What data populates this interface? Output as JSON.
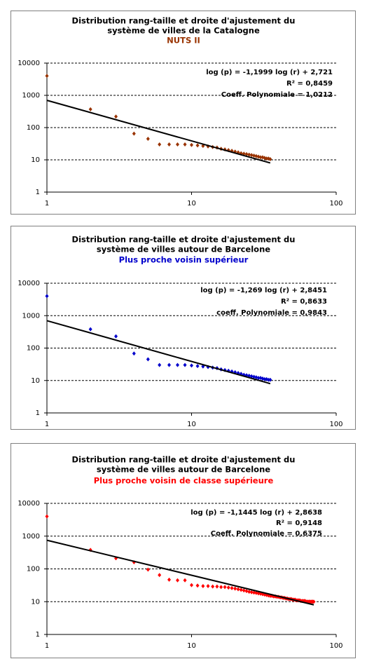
{
  "chart_data": [
    {
      "type": "scatter",
      "title": [
        "Distribution rang-taille et droite d'ajustement du",
        "système de villes de la Catalogne"
      ],
      "subtitle": "NUTS II",
      "subtitle_color": "#993300",
      "annotations": [
        "log (p) = -1,1999 log (r) + 2,721",
        "R² = 0,8459",
        "Coeff. Polynomiale = 1,0212"
      ],
      "log_x": true,
      "log_y": true,
      "grid": true,
      "xlim": [
        1,
        100
      ],
      "ylim": [
        1,
        10000
      ],
      "xticks": [
        1,
        10,
        100
      ],
      "yticks": [
        1,
        10,
        100,
        1000,
        10000
      ],
      "series": [
        {
          "kind": "points",
          "color": "#993300",
          "x": [
            1,
            2,
            3,
            4,
            5,
            6,
            7,
            8,
            9,
            10,
            11,
            12,
            13,
            14,
            15,
            16,
            17,
            18,
            19,
            20,
            21,
            22,
            23,
            24,
            25,
            26,
            27,
            28,
            29,
            30,
            31,
            32,
            33,
            34,
            35
          ],
          "values": [
            4000,
            370,
            220,
            65,
            45,
            30,
            30,
            30,
            30,
            29,
            28,
            27,
            26,
            25,
            24,
            22,
            21,
            20,
            19,
            18,
            17,
            16,
            15.5,
            15,
            14.5,
            14,
            13.5,
            13,
            12.5,
            12,
            12,
            11.5,
            11,
            11,
            10.5
          ]
        },
        {
          "kind": "line",
          "color": "#000000",
          "x": [
            1,
            35
          ],
          "values": [
            700,
            8
          ]
        }
      ]
    },
    {
      "type": "scatter",
      "title": [
        "Distribution rang-taille et droite d'ajustement du",
        "système de villes autour de Barcelone"
      ],
      "subtitle": "Plus proche voisin supérieur",
      "subtitle_color": "#0000cc",
      "annotations": [
        "log (p) = -1,269 log (r) + 2,8451",
        "R² = 0,8633",
        "coeff. Polynomiale = 0,9843"
      ],
      "log_x": true,
      "log_y": true,
      "grid": true,
      "xlim": [
        1,
        100
      ],
      "ylim": [
        1,
        10000
      ],
      "xticks": [
        1,
        10,
        100
      ],
      "yticks": [
        1,
        10,
        100,
        1000,
        10000
      ],
      "series": [
        {
          "kind": "points",
          "color": "#0000cc",
          "x": [
            1,
            2,
            3,
            4,
            5,
            6,
            7,
            8,
            9,
            10,
            11,
            12,
            13,
            14,
            15,
            16,
            17,
            18,
            19,
            20,
            21,
            22,
            23,
            24,
            25,
            26,
            27,
            28,
            29,
            30,
            31,
            32,
            33,
            34,
            35
          ],
          "values": [
            4000,
            380,
            230,
            68,
            45,
            30,
            30,
            30,
            30,
            29,
            28,
            27,
            26,
            25,
            24,
            22,
            21,
            20,
            19,
            18,
            17,
            16,
            15,
            14.5,
            14,
            13.5,
            13,
            12.5,
            12,
            12,
            11.5,
            11,
            11,
            10.5,
            10.5
          ]
        },
        {
          "kind": "line",
          "color": "#000000",
          "x": [
            1,
            35
          ],
          "values": [
            700,
            8
          ]
        }
      ]
    },
    {
      "type": "scatter",
      "title": [
        "Distribution rang-taille et droite d'ajustement du",
        "système de villes autour de Barcelone"
      ],
      "subtitle": "Plus proche voisin de classe supérieure",
      "subtitle_color": "#ff0000",
      "annotations": [
        "log (p) = -1,1445 log (r) + 2,8638",
        "R² = 0,9148",
        "Coeff. Polynomiale = 0,6375"
      ],
      "log_x": true,
      "log_y": true,
      "grid": true,
      "xlim": [
        1,
        100
      ],
      "ylim": [
        1,
        10000
      ],
      "xticks": [
        1,
        10,
        100
      ],
      "yticks": [
        1,
        10,
        100,
        1000,
        10000
      ],
      "series": [
        {
          "kind": "points",
          "color": "#ff0000",
          "x": [
            1,
            2,
            3,
            4,
            5,
            6,
            7,
            8,
            9,
            10,
            11,
            12,
            13,
            14,
            15,
            16,
            17,
            18,
            19,
            20,
            21,
            22,
            23,
            24,
            25,
            26,
            27,
            28,
            29,
            30,
            31,
            32,
            33,
            34,
            35,
            36,
            37,
            38,
            39,
            40,
            41,
            42,
            43,
            44,
            45,
            46,
            47,
            48,
            49,
            50,
            51,
            52,
            53,
            54,
            55,
            56,
            57,
            58,
            59,
            60,
            61,
            62,
            63,
            64,
            65,
            66,
            67,
            68,
            69,
            70
          ],
          "values": [
            4000,
            380,
            210,
            160,
            95,
            65,
            47,
            45,
            45,
            32,
            31,
            30,
            30,
            29,
            29,
            28,
            28,
            27,
            26,
            25,
            24,
            23,
            22,
            21,
            20,
            19.5,
            19,
            18.5,
            18,
            17.5,
            17,
            16.5,
            16,
            15.5,
            15,
            15,
            14.5,
            14.5,
            14,
            14,
            13.5,
            13.5,
            13,
            13,
            12.5,
            12.5,
            12,
            12,
            12,
            11.5,
            11.5,
            11.5,
            11,
            11,
            11,
            11,
            10.5,
            10.5,
            10.5,
            10.5,
            10.5,
            10,
            10,
            10,
            10,
            10,
            10,
            10,
            10,
            10
          ]
        },
        {
          "kind": "line",
          "color": "#000000",
          "x": [
            1,
            70
          ],
          "values": [
            750,
            8
          ]
        }
      ]
    }
  ]
}
